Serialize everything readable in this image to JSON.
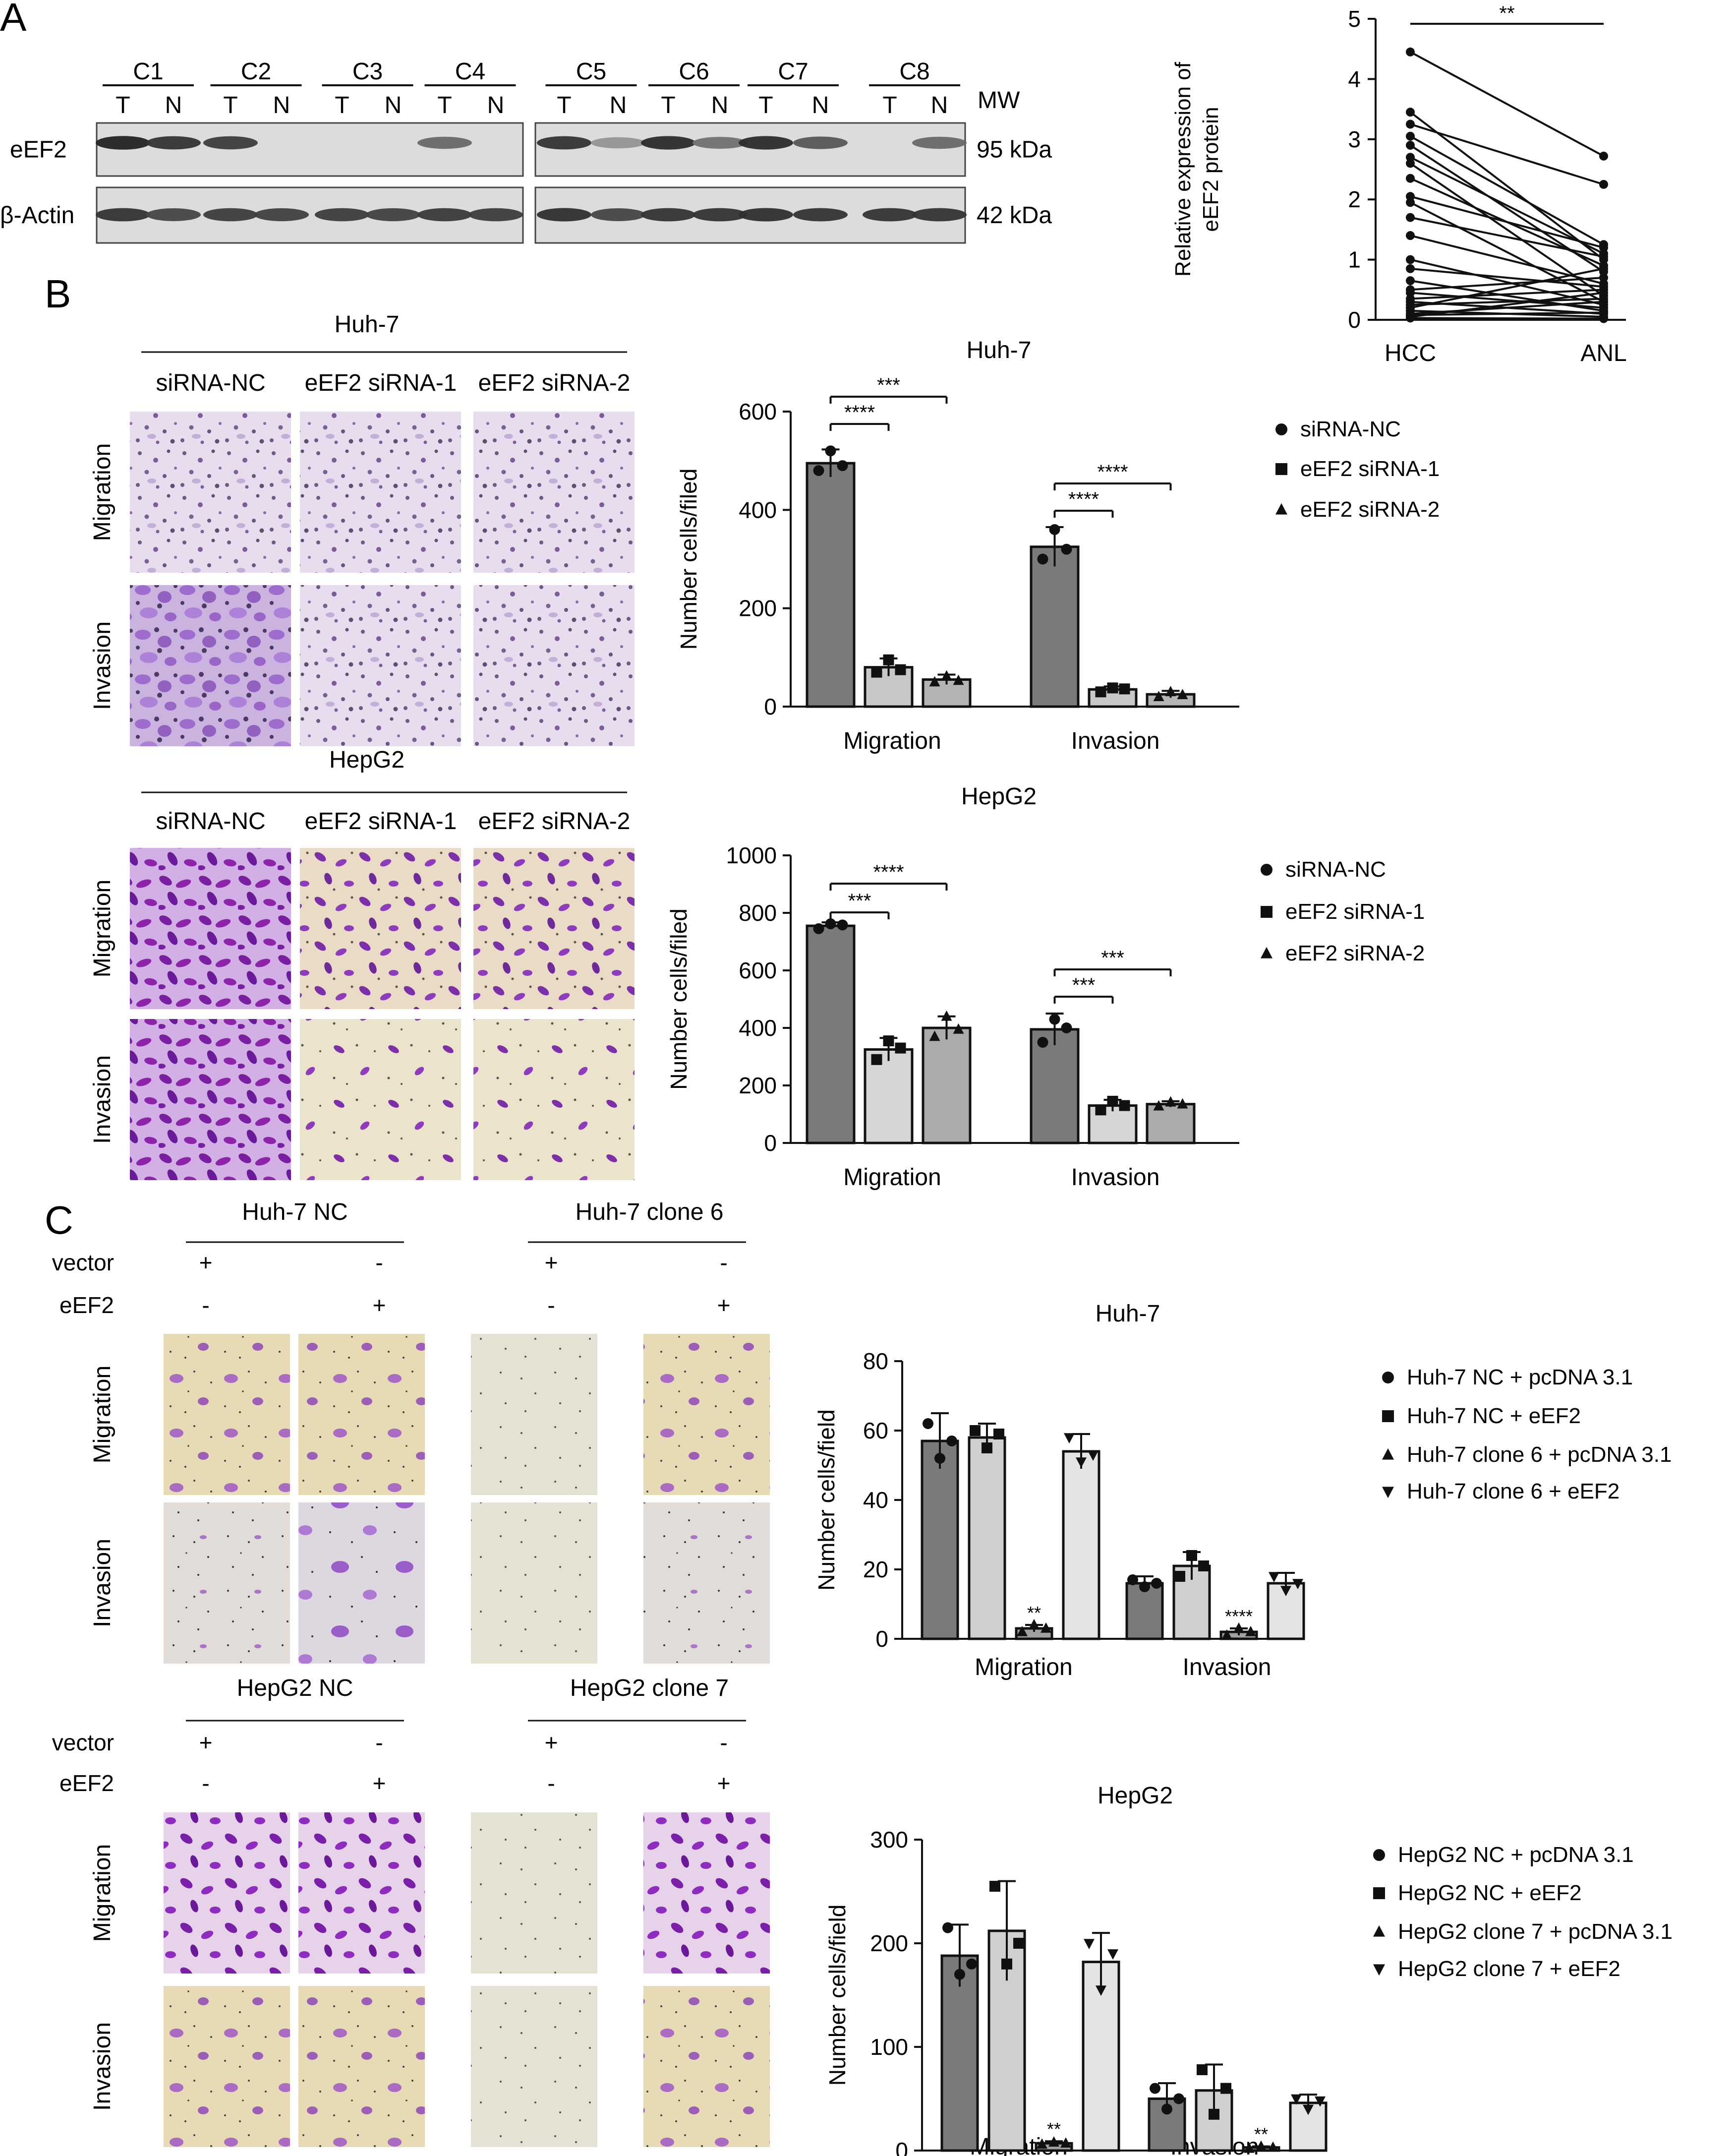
{
  "panels": {
    "A": {
      "label": "A",
      "lanes": [
        "C1",
        "C2",
        "C3",
        "C4",
        "C5",
        "C6",
        "C7",
        "C8"
      ],
      "lane_sub": [
        "T",
        "N"
      ],
      "mw_label": "MW",
      "rows": [
        {
          "protein": "eEF2",
          "mw": "95 kDa"
        },
        {
          "protein": "β-Actin",
          "mw": "42 kDa"
        }
      ],
      "band_intensity": {
        "eEF2": [
          0.95,
          0.85,
          0.8,
          0.06,
          0.05,
          0.05,
          0.55,
          0.05,
          0.85,
          0.3,
          0.9,
          0.5,
          0.9,
          0.65,
          0.05,
          0.55
        ],
        "actin": [
          0.85,
          0.75,
          0.8,
          0.78,
          0.8,
          0.78,
          0.82,
          0.8,
          0.88,
          0.75,
          0.85,
          0.85,
          0.88,
          0.85,
          0.85,
          0.85
        ]
      },
      "paired_chart": {
        "ylabel_lines": [
          "Relative expression of",
          "eEF2 protein"
        ],
        "categories": [
          "HCC",
          "ANL"
        ],
        "ylim": [
          0,
          5
        ],
        "yticks": [
          "0",
          "1",
          "2",
          "3",
          "4",
          "5"
        ],
        "significance": "**",
        "pairs": [
          [
            4.45,
            2.72
          ],
          [
            3.45,
            1.0
          ],
          [
            3.25,
            2.25
          ],
          [
            3.05,
            1.25
          ],
          [
            2.9,
            0.8
          ],
          [
            2.7,
            1.1
          ],
          [
            2.6,
            0.4
          ],
          [
            2.35,
            0.9
          ],
          [
            2.05,
            1.2
          ],
          [
            1.95,
            0.3
          ],
          [
            1.7,
            1.05
          ],
          [
            1.4,
            0.6
          ],
          [
            1.0,
            0.25
          ],
          [
            0.85,
            0.55
          ],
          [
            0.65,
            0.15
          ],
          [
            0.5,
            0.7
          ],
          [
            0.45,
            0.2
          ],
          [
            0.35,
            0.5
          ],
          [
            0.3,
            0.1
          ],
          [
            0.25,
            0.35
          ],
          [
            0.2,
            0.85
          ],
          [
            0.15,
            0.05
          ],
          [
            0.1,
            0.3
          ],
          [
            0.08,
            0.12
          ],
          [
            0.05,
            0.45
          ],
          [
            0.03,
            0.02
          ]
        ]
      }
    },
    "B": {
      "label": "B",
      "groups": [
        {
          "cell": "Huh-7",
          "conditions": [
            "siRNA-NC",
            "eEF2 siRNA-1",
            "eEF2 siRNA-2"
          ],
          "rows": [
            "Migration",
            "Invasion"
          ]
        },
        {
          "cell": "HepG2",
          "conditions": [
            "siRNA-NC",
            "eEF2 siRNA-1",
            "eEF2 siRNA-2"
          ],
          "rows": [
            "Migration",
            "Invasion"
          ]
        }
      ]
    },
    "C": {
      "label": "C",
      "groups": [
        {
          "headers": [
            "Huh-7 NC",
            "Huh-7 clone 6"
          ],
          "vector_label": "vector",
          "eef2_label": "eEF2",
          "vector_signs": [
            "+",
            "-",
            "+",
            "-"
          ],
          "eef2_signs": [
            "-",
            "+",
            "-",
            "+"
          ],
          "rows": [
            "Migration",
            "Invasion"
          ]
        },
        {
          "headers": [
            "HepG2 NC",
            "HepG2 clone 7"
          ],
          "vector_label": "vector",
          "eef2_label": "eEF2",
          "vector_signs": [
            "+",
            "-",
            "+",
            "-"
          ],
          "eef2_signs": [
            "-",
            "+",
            "-",
            "+"
          ],
          "rows": [
            "Migration",
            "Invasion"
          ]
        }
      ]
    }
  },
  "chart_data": [
    {
      "type": "bar",
      "title": "Huh-7",
      "ylabel": "Number cells/filed",
      "categories": [
        "Migration",
        "Invasion"
      ],
      "ylim": [
        0,
        600
      ],
      "yticks": [
        "0",
        "200",
        "400",
        "600"
      ],
      "legend_position": "right",
      "legend_markers": [
        "circle",
        "square",
        "triangle"
      ],
      "series": [
        {
          "name": "siRNA-NC",
          "color": "#7a7a7a",
          "values": [
            495,
            325
          ],
          "err": [
            28,
            40
          ],
          "points": [
            [
              480,
              520,
              490
            ],
            [
              300,
              360,
              320
            ]
          ]
        },
        {
          "name": "eEF2 siRNA-1",
          "color": "#c8c8c8",
          "values": [
            80,
            35
          ],
          "err": [
            18,
            6
          ],
          "points": [
            [
              70,
              95,
              75
            ],
            [
              30,
              38,
              36
            ]
          ]
        },
        {
          "name": "eEF2 siRNA-2",
          "color": "#b4b4b4",
          "values": [
            55,
            25
          ],
          "err": [
            10,
            7
          ],
          "points": [
            [
              50,
              62,
              53
            ],
            [
              20,
              30,
              24
            ]
          ]
        }
      ],
      "sig_labels": [
        "****",
        "***",
        "****",
        "****"
      ]
    },
    {
      "type": "bar",
      "title": "HepG2",
      "ylabel": "Number cells/filed",
      "categories": [
        "Migration",
        "Invasion"
      ],
      "ylim": [
        0,
        1000
      ],
      "yticks": [
        "0",
        "200",
        "400",
        "600",
        "800",
        "1000"
      ],
      "legend_position": "right",
      "legend_markers": [
        "circle",
        "square",
        "triangle"
      ],
      "series": [
        {
          "name": "siRNA-NC",
          "color": "#7a7a7a",
          "values": [
            755,
            395
          ],
          "err": [
            12,
            55
          ],
          "points": [
            [
              745,
              762,
              758
            ],
            [
              350,
              430,
              400
            ]
          ]
        },
        {
          "name": "eEF2 siRNA-1",
          "color": "#d6d6d6",
          "values": [
            325,
            130
          ],
          "err": [
            40,
            20
          ],
          "points": [
            [
              290,
              355,
              330
            ],
            [
              115,
              145,
              130
            ]
          ]
        },
        {
          "name": "eEF2 siRNA-2",
          "color": "#ababab",
          "values": [
            400,
            135
          ],
          "err": [
            40,
            10
          ],
          "points": [
            [
              370,
              440,
              395
            ],
            [
              128,
              142,
              135
            ]
          ]
        }
      ],
      "sig_labels": [
        "***",
        "****",
        "***",
        "***"
      ]
    },
    {
      "type": "bar",
      "title": "Huh-7",
      "ylabel": "Number cells/field",
      "categories": [
        "Migration",
        "Invasion"
      ],
      "ylim": [
        0,
        80
      ],
      "yticks": [
        "0",
        "20",
        "40",
        "60",
        "80"
      ],
      "legend_position": "right",
      "legend_markers": [
        "circle",
        "square",
        "triangle",
        "triangle-down"
      ],
      "series": [
        {
          "name": "Huh-7 NC + pcDNA 3.1",
          "color": "#7a7a7a",
          "values": [
            57,
            16
          ],
          "err": [
            8,
            2
          ],
          "points": [
            [
              62,
              52,
              57
            ],
            [
              17,
              15,
              16
            ]
          ]
        },
        {
          "name": "Huh-7 NC + eEF2",
          "color": "#cfcfcf",
          "values": [
            58,
            21
          ],
          "err": [
            4,
            4
          ],
          "points": [
            [
              60,
              55,
              59
            ],
            [
              18,
              24,
              21
            ]
          ]
        },
        {
          "name": "Huh-7 clone 6 + pcDNA 3.1",
          "color": "#a0a0a0",
          "values": [
            3,
            2
          ],
          "err": [
            1,
            1
          ],
          "points": [
            [
              2,
              4,
              3
            ],
            [
              1,
              3,
              2
            ]
          ]
        },
        {
          "name": "Huh-7 clone 6 + eEF2",
          "color": "#e4e4e4",
          "values": [
            54,
            16
          ],
          "err": [
            5,
            3
          ],
          "points": [
            [
              58,
              51,
              53
            ],
            [
              18,
              14,
              16
            ]
          ]
        }
      ],
      "sig_labels": [
        "**",
        "****"
      ]
    },
    {
      "type": "bar",
      "title": "HepG2",
      "ylabel": "Number cells/field",
      "categories": [
        "Migration",
        "Invasion"
      ],
      "ylim": [
        0,
        300
      ],
      "yticks": [
        "0",
        "100",
        "200",
        "300"
      ],
      "legend_position": "right",
      "legend_markers": [
        "circle",
        "square",
        "triangle",
        "triangle-down"
      ],
      "series": [
        {
          "name": "HepG2 NC + pcDNA 3.1",
          "color": "#7a7a7a",
          "values": [
            188,
            50
          ],
          "err": [
            30,
            15
          ],
          "points": [
            [
              215,
              170,
              180
            ],
            [
              60,
              40,
              50
            ]
          ]
        },
        {
          "name": "HepG2 NC + eEF2",
          "color": "#cfcfcf",
          "values": [
            212,
            58
          ],
          "err": [
            48,
            25
          ],
          "points": [
            [
              255,
              180,
              200
            ],
            [
              78,
              35,
              60
            ]
          ]
        },
        {
          "name": "HepG2 clone 7 + pcDNA 3.1",
          "color": "#a0a0a0",
          "values": [
            7,
            3
          ],
          "err": [
            2,
            1
          ],
          "points": [
            [
              6,
              8,
              7
            ],
            [
              2,
              4,
              3
            ]
          ]
        },
        {
          "name": "HepG2 clone 7 + eEF2",
          "color": "#e4e4e4",
          "values": [
            182,
            46
          ],
          "err": [
            28,
            8
          ],
          "points": [
            [
              200,
              155,
              190
            ],
            [
              50,
              40,
              48
            ]
          ]
        }
      ],
      "sig_labels": [
        "**",
        "**"
      ]
    }
  ]
}
